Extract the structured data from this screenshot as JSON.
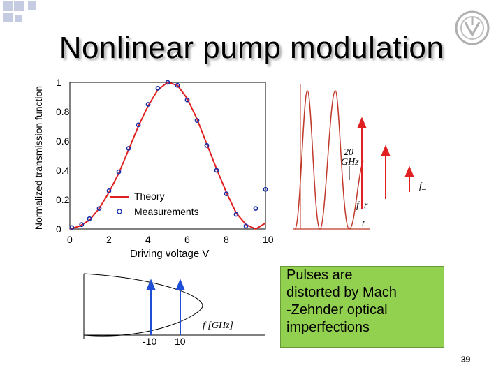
{
  "slide": {
    "title": "Nonlinear pump modulation",
    "page_number": "39",
    "note_lines": [
      "Pulses are",
      "distorted by Mach",
      "-Zehnder optical",
      "imperfections"
    ]
  },
  "chart_data": [
    {
      "type": "line",
      "title": "",
      "xlabel": "Driving voltage V",
      "ylabel": "Normalized transmission function",
      "xlim": [
        0,
        10
      ],
      "ylim": [
        0,
        1
      ],
      "x_ticks": [
        "0",
        "2",
        "4",
        "6",
        "8",
        "10"
      ],
      "y_ticks": [
        "0",
        "0.2",
        "0.4",
        "0.6",
        "0.8",
        "1"
      ],
      "legend_position": "bottom-left",
      "grid": false,
      "series": [
        {
          "name": "Theory",
          "style": "line",
          "color": "#e02020",
          "x": [
            0,
            0.5,
            1,
            1.5,
            2,
            2.5,
            3,
            3.5,
            4,
            4.5,
            5,
            5.5,
            6,
            6.5,
            7,
            7.5,
            8,
            8.5,
            9,
            9.5,
            10
          ],
          "y": [
            0,
            0.02,
            0.06,
            0.14,
            0.25,
            0.38,
            0.54,
            0.7,
            0.84,
            0.95,
            1.0,
            0.98,
            0.89,
            0.75,
            0.58,
            0.41,
            0.25,
            0.11,
            0.03,
            0.0,
            0.04
          ]
        },
        {
          "name": "Measurements",
          "style": "markers",
          "color": "#1a2ea8",
          "x": [
            0.1,
            0.6,
            1.0,
            1.5,
            2.0,
            2.5,
            3.0,
            3.5,
            4.0,
            4.5,
            5.0,
            5.5,
            6.0,
            6.5,
            7.0,
            7.5,
            8.0,
            8.5,
            9.0,
            9.5,
            10.0
          ],
          "y": [
            0.01,
            0.03,
            0.07,
            0.14,
            0.26,
            0.39,
            0.55,
            0.71,
            0.85,
            0.96,
            1.0,
            0.98,
            0.88,
            0.74,
            0.57,
            0.4,
            0.24,
            0.1,
            0.02,
            0.14,
            0.27
          ]
        }
      ]
    },
    {
      "type": "line",
      "title": "",
      "xlabel": "t",
      "ylabel": "",
      "annotations": [
        "20",
        "GHz",
        "f_opt",
        "f_r"
      ],
      "series": [
        {
          "name": "",
          "style": "pulses",
          "color": "#c0392b",
          "x": [
            0,
            1,
            2,
            3,
            4
          ],
          "y": [
            0,
            1,
            0,
            1,
            0
          ]
        }
      ]
    },
    {
      "type": "line",
      "title": "",
      "xlabel": "f [GHz]",
      "x_ticks": [
        "-10",
        "10"
      ],
      "series": [
        {
          "name": "",
          "style": "arrows",
          "color": "#1f4fd6",
          "x": [
            -10,
            10
          ],
          "y": [
            1,
            1
          ]
        }
      ]
    }
  ]
}
